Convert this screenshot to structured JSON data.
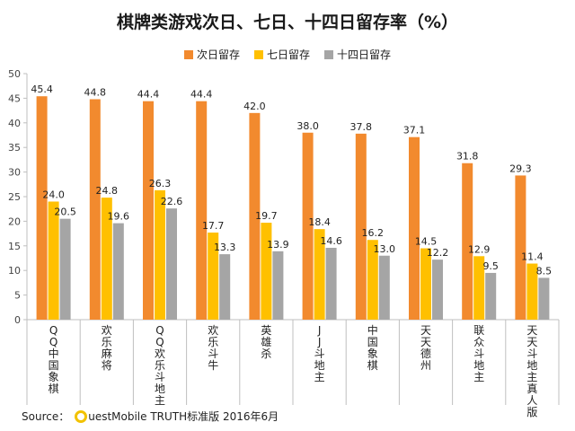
{
  "chart_data": {
    "type": "bar",
    "title": "棋牌类游戏次日、七日、十四日留存率（%）",
    "categories": [
      "QQ中国象棋",
      "欢乐麻将",
      "QQ欢乐斗地主",
      "欢乐斗牛",
      "英雄杀",
      "JJ斗地主",
      "中国象棋",
      "天天德州",
      "联众斗地主",
      "天天斗地主真人版"
    ],
    "series": [
      {
        "name": "次日留存",
        "color": "#f28a2e",
        "values": [
          45.4,
          44.8,
          44.4,
          44.4,
          42.0,
          38.0,
          37.8,
          37.1,
          31.8,
          29.3
        ]
      },
      {
        "name": "七日留存",
        "color": "#ffc000",
        "values": [
          24.0,
          24.8,
          26.3,
          17.7,
          19.7,
          18.4,
          16.2,
          14.5,
          12.9,
          11.4
        ]
      },
      {
        "name": "十四日留存",
        "color": "#a5a5a5",
        "values": [
          20.5,
          19.6,
          22.6,
          13.3,
          13.9,
          14.6,
          13.0,
          12.2,
          9.5,
          8.5
        ]
      }
    ],
    "ylim": [
      0,
      50
    ],
    "yticks": [
      0,
      5,
      10,
      15,
      20,
      25,
      30,
      35,
      40,
      45,
      50
    ],
    "grid": false,
    "legend_position": "top"
  },
  "source": {
    "prefix": "Source：",
    "brand_rest": "uestMobile TRUTH标准版 2016年6月"
  }
}
